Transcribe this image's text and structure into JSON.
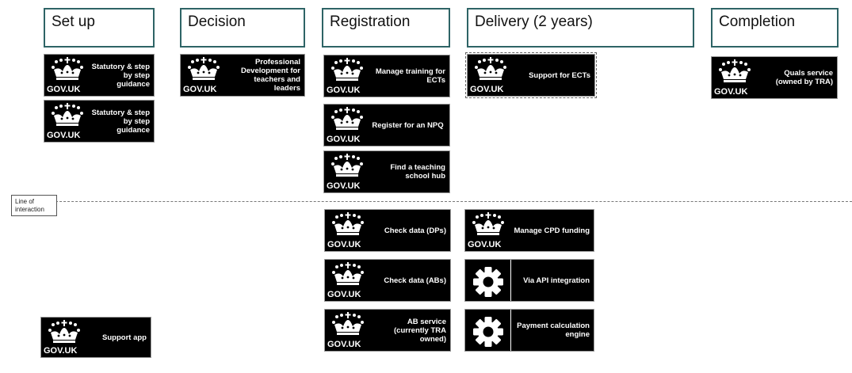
{
  "stages": [
    "Set up",
    "Decision",
    "Registration",
    "Delivery (2 years)",
    "Completion"
  ],
  "line_of_interaction": "Line of interaction",
  "gov_logo_text": "GOV.UK",
  "cards": {
    "setup_1": "Statutory & step by step guidance",
    "setup_2": "Statutory & step by step guidance",
    "decision_1": "Professional Development for teachers and leaders",
    "reg_1": "Manage training for ECTs",
    "reg_2": "Register for an NPQ",
    "reg_3": "Find a teaching school hub",
    "delivery_1": "Support for ECTs",
    "completion_1": "Quals service (owned by TRA)",
    "backstage_setup_1": "Support app",
    "backstage_reg_1": "Check data (DPs)",
    "backstage_reg_2": "Check data (ABs)",
    "backstage_reg_3": "AB service (currently TRA owned)",
    "backstage_delivery_1": "Manage CPD funding",
    "backstage_delivery_2": "Via API integration",
    "backstage_delivery_3": "Payment calculation engine"
  },
  "icons": {
    "crown": "crown-icon",
    "cog": "cog-icon"
  }
}
